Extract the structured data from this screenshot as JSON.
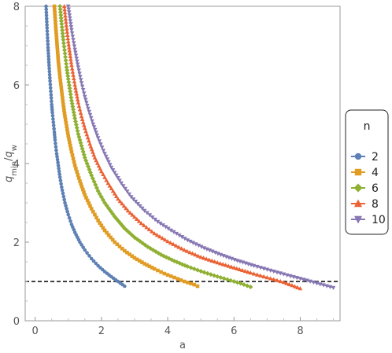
{
  "chart_data": {
    "type": "scatter",
    "xlabel": "a",
    "ylabel": "q_min/q_w",
    "xlim": [
      -0.3,
      9.2
    ],
    "ylim": [
      0,
      8
    ],
    "x_ticks": [
      0,
      2,
      4,
      6,
      8
    ],
    "y_ticks": [
      0,
      2,
      4,
      6,
      8
    ],
    "reference_line": {
      "y": 1,
      "style": "dashed",
      "color": "#000000"
    },
    "grid": false,
    "legend": {
      "title": "n",
      "position": "right"
    },
    "series": [
      {
        "name": "2",
        "marker": "circle",
        "color": "#5E81B5",
        "x": [
          0.33,
          0.36,
          0.39,
          0.42,
          0.45,
          0.48,
          0.5,
          0.52,
          0.55,
          0.58,
          0.6,
          0.65,
          0.7,
          0.75,
          0.8,
          0.9,
          1.0,
          1.1,
          1.2,
          1.35,
          1.5,
          1.7,
          1.9,
          2.1,
          2.3,
          2.5,
          2.7
        ],
        "y": [
          8.0,
          7.45,
          6.95,
          6.5,
          6.1,
          5.75,
          5.5,
          5.3,
          5.05,
          4.8,
          4.6,
          4.25,
          3.95,
          3.65,
          3.4,
          3.0,
          2.7,
          2.45,
          2.25,
          2.0,
          1.8,
          1.58,
          1.4,
          1.25,
          1.12,
          1.0,
          0.88
        ]
      },
      {
        "name": "4",
        "marker": "square",
        "color": "#E19C24",
        "x": [
          0.58,
          0.62,
          0.66,
          0.7,
          0.75,
          0.8,
          0.85,
          0.9,
          1.0,
          1.1,
          1.2,
          1.35,
          1.5,
          1.7,
          1.9,
          2.1,
          2.4,
          2.7,
          3.0,
          3.3,
          3.6,
          3.9,
          4.2,
          4.5,
          4.8,
          4.9
        ],
        "y": [
          8.0,
          7.5,
          7.05,
          6.6,
          6.2,
          5.85,
          5.5,
          5.2,
          4.7,
          4.3,
          3.95,
          3.55,
          3.2,
          2.85,
          2.55,
          2.3,
          2.0,
          1.78,
          1.6,
          1.45,
          1.32,
          1.2,
          1.1,
          1.0,
          0.92,
          0.88
        ]
      },
      {
        "name": "6",
        "marker": "diamond",
        "color": "#8FB032",
        "x": [
          0.75,
          0.8,
          0.85,
          0.9,
          0.95,
          1.0,
          1.1,
          1.2,
          1.3,
          1.4,
          1.5,
          1.7,
          1.9,
          2.1,
          2.4,
          2.7,
          3.0,
          3.4,
          3.8,
          4.2,
          4.6,
          5.0,
          5.4,
          5.8,
          6.2,
          6.5
        ],
        "y": [
          8.0,
          7.55,
          7.15,
          6.8,
          6.45,
          6.15,
          5.6,
          5.15,
          4.75,
          4.45,
          4.15,
          3.7,
          3.3,
          3.0,
          2.65,
          2.35,
          2.12,
          1.88,
          1.68,
          1.52,
          1.38,
          1.26,
          1.15,
          1.05,
          0.95,
          0.86
        ]
      },
      {
        "name": "8",
        "marker": "triangle-up",
        "color": "#EB6235",
        "x": [
          0.88,
          0.93,
          1.0,
          1.05,
          1.1,
          1.2,
          1.3,
          1.4,
          1.5,
          1.65,
          1.8,
          2.0,
          2.2,
          2.5,
          2.8,
          3.2,
          3.6,
          4.0,
          4.5,
          5.0,
          5.5,
          6.0,
          6.5,
          7.0,
          7.5,
          8.0
        ],
        "y": [
          8.0,
          7.6,
          7.1,
          6.8,
          6.5,
          6.0,
          5.55,
          5.2,
          4.9,
          4.5,
          4.15,
          3.8,
          3.5,
          3.1,
          2.8,
          2.48,
          2.22,
          2.02,
          1.8,
          1.62,
          1.48,
          1.35,
          1.22,
          1.1,
          0.98,
          0.82
        ]
      },
      {
        "name": "10",
        "marker": "triangle-down",
        "color": "#8778B3",
        "x": [
          1.0,
          1.05,
          1.1,
          1.2,
          1.3,
          1.4,
          1.5,
          1.6,
          1.75,
          1.9,
          2.1,
          2.3,
          2.6,
          2.9,
          3.3,
          3.7,
          4.1,
          4.6,
          5.1,
          5.6,
          6.1,
          6.6,
          7.1,
          7.6,
          8.1,
          8.6,
          9.0
        ],
        "y": [
          8.0,
          7.7,
          7.4,
          6.9,
          6.45,
          6.05,
          5.7,
          5.4,
          5.0,
          4.65,
          4.25,
          3.9,
          3.5,
          3.15,
          2.8,
          2.52,
          2.3,
          2.05,
          1.85,
          1.68,
          1.53,
          1.4,
          1.28,
          1.16,
          1.05,
          0.93,
          0.84
        ]
      }
    ]
  }
}
